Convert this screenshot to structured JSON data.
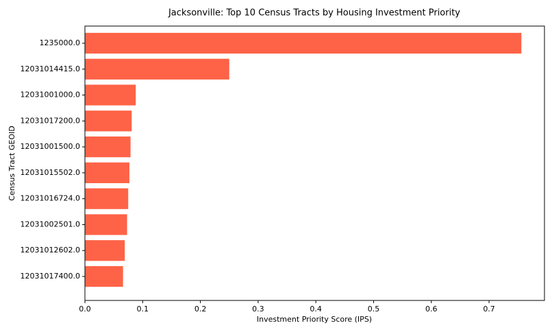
{
  "chart_data": {
    "type": "barh",
    "title": "Jacksonville: Top 10 Census Tracts by Housing Investment Priority",
    "x_label": "Investment Priority Score (IPS)",
    "y_label": "Census Tract GEOID",
    "categories": [
      "1235000.0",
      "12031014415.0",
      "12031001000.0",
      "12031017200.0",
      "12031001500.0",
      "12031015502.0",
      "12031016724.0",
      "12031002501.0",
      "12031012602.0",
      "12031017400.0"
    ],
    "values": [
      0.756,
      0.25,
      0.088,
      0.081,
      0.079,
      0.077,
      0.075,
      0.073,
      0.069,
      0.066
    ],
    "color": "#ff6347",
    "xlim": [
      0,
      0.796
    ],
    "xticks": [
      {
        "value": 0,
        "label": "0.0"
      },
      0.1,
      0.2,
      0.3,
      0.4,
      0.5,
      0.6,
      0.7
    ]
  }
}
